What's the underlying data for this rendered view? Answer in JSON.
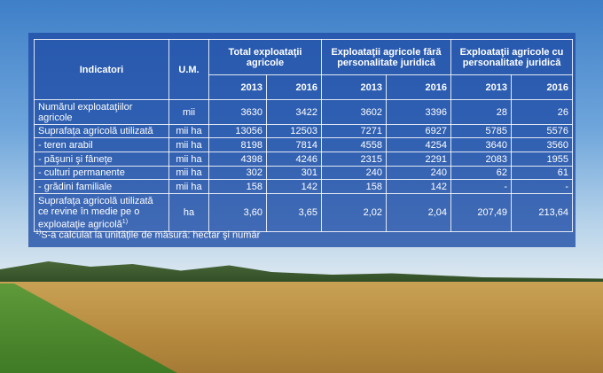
{
  "table": {
    "header": {
      "indicator": "Indicatori",
      "unit": "U.M.",
      "groups": [
        "Total exploataţii agricole",
        "Exploataţii agricole fără personalitate juridică",
        "Exploataţii agricole cu personalitate juridică"
      ],
      "years": [
        "2013",
        "2016",
        "2013",
        "2016",
        "2013",
        "2016"
      ]
    },
    "rows": [
      {
        "label": "Numărul exploataţiilor agricole",
        "unit": "mii",
        "values": [
          "3630",
          "3422",
          "3602",
          "3396",
          "28",
          "26"
        ]
      },
      {
        "label": "Suprafaţa agricolă utilizată",
        "unit": "mii ha",
        "values": [
          "13056",
          "12503",
          "7271",
          "6927",
          "5785",
          "5576"
        ]
      },
      {
        "label": "- teren arabil",
        "unit": "mii ha",
        "values": [
          "8198",
          "7814",
          "4558",
          "4254",
          "3640",
          "3560"
        ]
      },
      {
        "label": "- păşuni şi fâneţe",
        "unit": "mii ha",
        "values": [
          "4398",
          "4246",
          "2315",
          "2291",
          "2083",
          "1955"
        ]
      },
      {
        "label": "- culturi permanente",
        "unit": "mii ha",
        "values": [
          "302",
          "301",
          "240",
          "240",
          "62",
          "61"
        ]
      },
      {
        "label": "- grădini familiale",
        "unit": "mii ha",
        "values": [
          "158",
          "142",
          "158",
          "142",
          "-",
          "-"
        ]
      },
      {
        "label": "Suprafaţa agricolă utilizată ce revine în medie pe o exploataţie agricolă",
        "note_marker": "1)",
        "unit": "ha",
        "values": [
          "3,60",
          "3,65",
          "2,02",
          "2,04",
          "207,49",
          "213,64"
        ]
      }
    ],
    "footnote": {
      "marker": "1)",
      "text": "S-a calculat la unitățile de măsură: hectar şi număr"
    }
  }
}
